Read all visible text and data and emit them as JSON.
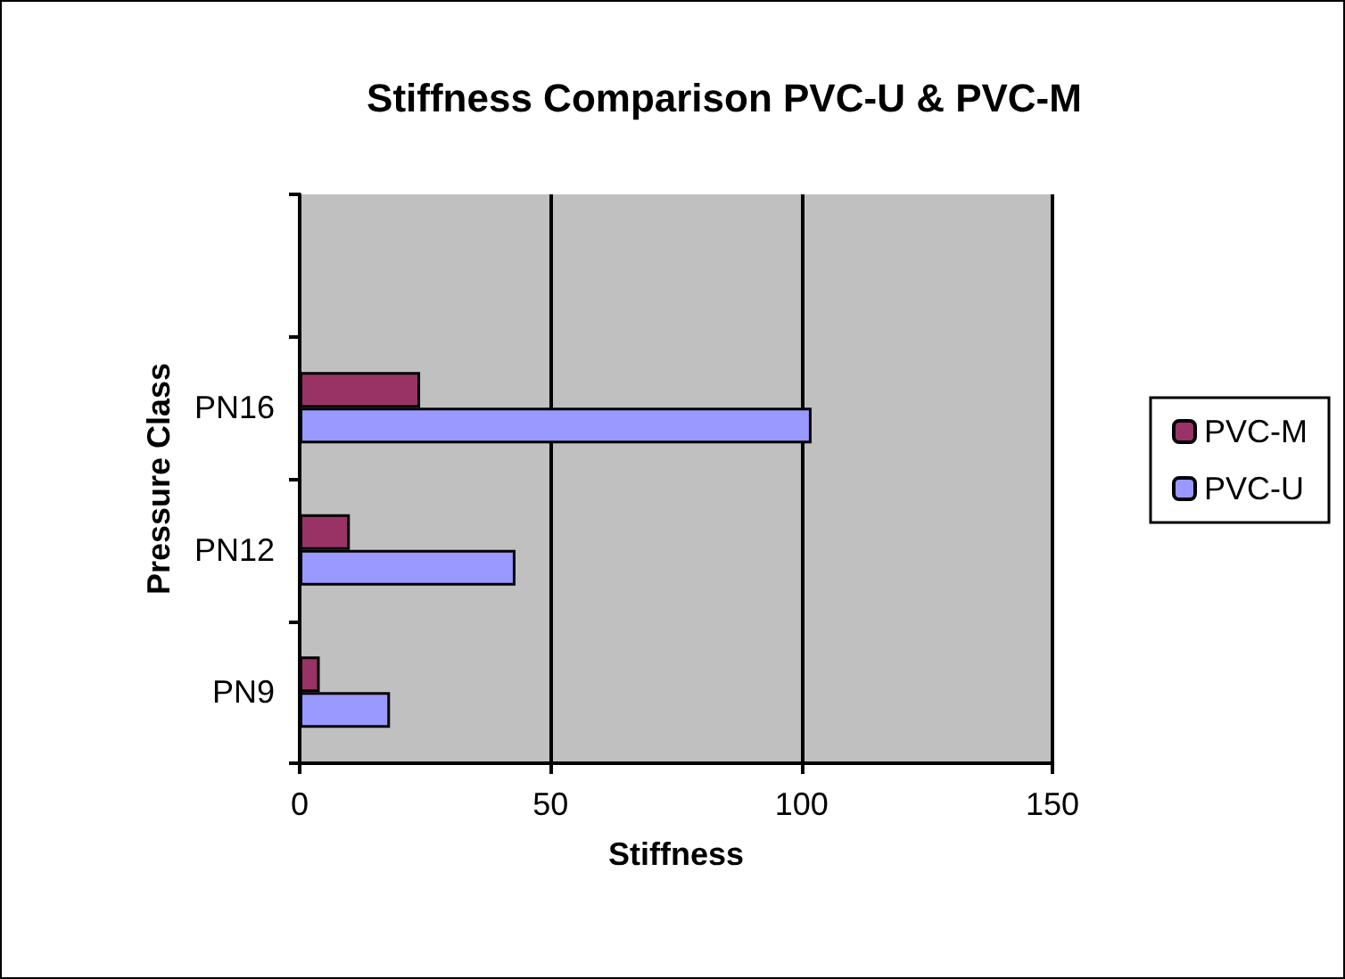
{
  "chart_data": {
    "type": "bar",
    "orientation": "horizontal",
    "title": "Stiffness Comparison PVC-U & PVC-M",
    "xlabel": "Stiffness",
    "ylabel": "Pressure Class",
    "categories": [
      null,
      "PN16",
      "PN12",
      "PN9"
    ],
    "series": [
      {
        "name": "PVC-M",
        "color": "#993366",
        "values": [
          null,
          24,
          10,
          4
        ]
      },
      {
        "name": "PVC-U",
        "color": "#9999ff",
        "values": [
          null,
          102,
          43,
          18
        ]
      }
    ],
    "xlim": [
      0,
      150
    ],
    "xticks": [
      0,
      50,
      100,
      150
    ],
    "grid": "x",
    "legend": "right"
  }
}
